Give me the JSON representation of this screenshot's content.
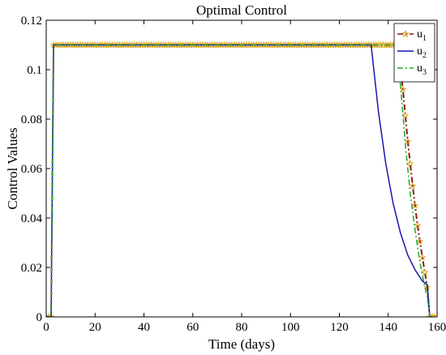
{
  "chart_data": {
    "type": "line",
    "title": "Optimal Control",
    "xlabel": "Time (days)",
    "ylabel": "Control Values",
    "xlim": [
      0,
      160
    ],
    "ylim": [
      0,
      0.12
    ],
    "xticks": [
      "0",
      "20",
      "40",
      "60",
      "80",
      "100",
      "120",
      "140",
      "160"
    ],
    "yticks": [
      "0",
      "0.02",
      "0.04",
      "0.06",
      "0.08",
      "0.1",
      "0.12"
    ],
    "grid": false,
    "legend_position": "top-right",
    "series": [
      {
        "name": "u1",
        "name_base": "u",
        "name_sub": "1",
        "color": "#8B1A1A",
        "marker_color": "#DAA520",
        "style": "dash-dot with star markers",
        "x": [
          0,
          2,
          3,
          10,
          30,
          60,
          90,
          120,
          143,
          144,
          146,
          148,
          150,
          152,
          154,
          156,
          157,
          158,
          159
        ],
        "y": [
          0,
          0,
          0.11,
          0.11,
          0.11,
          0.11,
          0.11,
          0.11,
          0.11,
          0.11,
          0.092,
          0.071,
          0.053,
          0.037,
          0.024,
          0.012,
          0.0,
          0.0,
          0.0
        ]
      },
      {
        "name": "u2",
        "name_base": "u",
        "name_sub": "2",
        "color": "#1515B0",
        "style": "solid",
        "x": [
          0,
          2,
          3,
          10,
          60,
          120,
          133,
          136,
          139,
          142,
          145,
          148,
          151,
          154,
          156,
          157,
          158
        ],
        "y": [
          0,
          0,
          0.11,
          0.11,
          0.11,
          0.11,
          0.11,
          0.083,
          0.062,
          0.046,
          0.034,
          0.025,
          0.019,
          0.0145,
          0.013,
          0.0,
          0.0
        ]
      },
      {
        "name": "u3",
        "name_base": "u",
        "name_sub": "3",
        "color": "#22AA22",
        "style": "dash-dot",
        "x": [
          0,
          2,
          3,
          10,
          60,
          120,
          143,
          145,
          147,
          149,
          151,
          153,
          155,
          156,
          157
        ],
        "y": [
          0,
          0,
          0.11,
          0.11,
          0.11,
          0.11,
          0.11,
          0.094,
          0.07,
          0.05,
          0.035,
          0.022,
          0.012,
          0.008,
          0.0
        ]
      }
    ]
  }
}
